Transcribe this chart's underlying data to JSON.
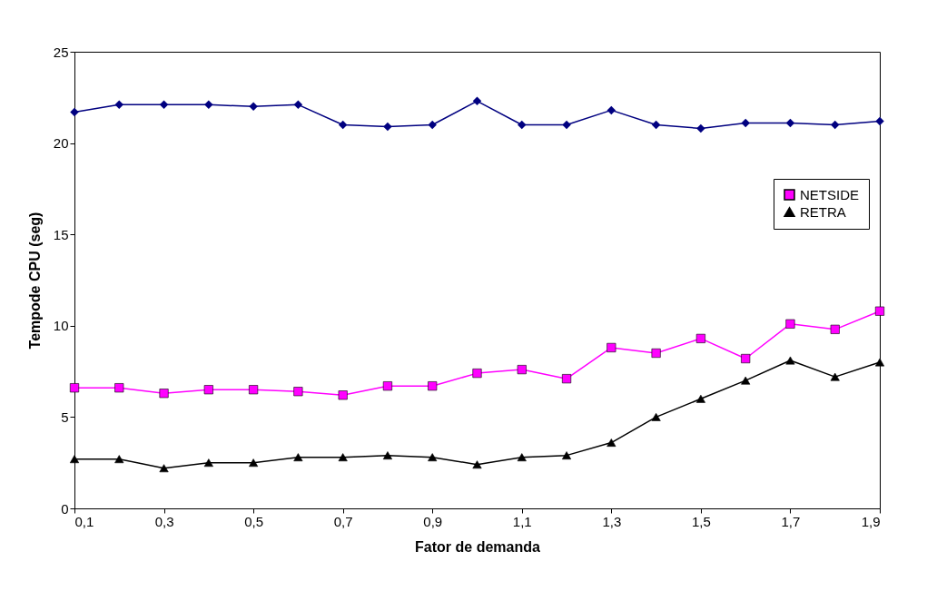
{
  "chart_data": {
    "type": "line",
    "xlabel": "Fator de demanda",
    "ylabel": "Tempode CPU (seg)",
    "x": [
      0.1,
      0.2,
      0.3,
      0.4,
      0.5,
      0.6,
      0.7,
      0.8,
      0.9,
      1.0,
      1.1,
      1.2,
      1.3,
      1.4,
      1.5,
      1.6,
      1.7,
      1.8,
      1.9
    ],
    "xlim": [
      0.1,
      1.9
    ],
    "xticks": [
      {
        "value": 0.1,
        "label": "0,1"
      },
      {
        "value": 0.3,
        "label": "0,3"
      },
      {
        "value": 0.5,
        "label": "0,5"
      },
      {
        "value": 0.7,
        "label": "0,7"
      },
      {
        "value": 0.9,
        "label": "0,9"
      },
      {
        "value": 1.1,
        "label": "1,1"
      },
      {
        "value": 1.3,
        "label": "1,3"
      },
      {
        "value": 1.5,
        "label": "1,5"
      },
      {
        "value": 1.7,
        "label": "1,7"
      },
      {
        "value": 1.9,
        "label": "1,9"
      }
    ],
    "ylim": [
      0,
      25
    ],
    "yticks": [
      0,
      5,
      10,
      15,
      20,
      25
    ],
    "grid": false,
    "legend": "right",
    "series": [
      {
        "color": "#000080",
        "marker": "diamond",
        "values": [
          21.7,
          22.1,
          22.1,
          22.1,
          22.0,
          22.1,
          21.0,
          20.9,
          21.0,
          22.3,
          21.0,
          21.0,
          21.8,
          21.0,
          20.8,
          21.1,
          21.1,
          21.0,
          21.2
        ]
      },
      {
        "name": "NETSIDE",
        "color": "#ff00ff",
        "marker": "square",
        "values": [
          6.6,
          6.6,
          6.3,
          6.5,
          6.5,
          6.4,
          6.2,
          6.7,
          6.7,
          7.4,
          7.6,
          7.1,
          8.8,
          8.5,
          9.3,
          8.2,
          10.1,
          9.8,
          10.8
        ]
      },
      {
        "name": "RETRA",
        "color": "#000000",
        "marker": "triangle",
        "values": [
          2.7,
          2.7,
          2.2,
          2.5,
          2.5,
          2.8,
          2.8,
          2.9,
          2.8,
          2.4,
          2.8,
          2.9,
          3.6,
          5.0,
          6.0,
          7.0,
          8.1,
          7.2,
          8.0
        ]
      }
    ]
  }
}
